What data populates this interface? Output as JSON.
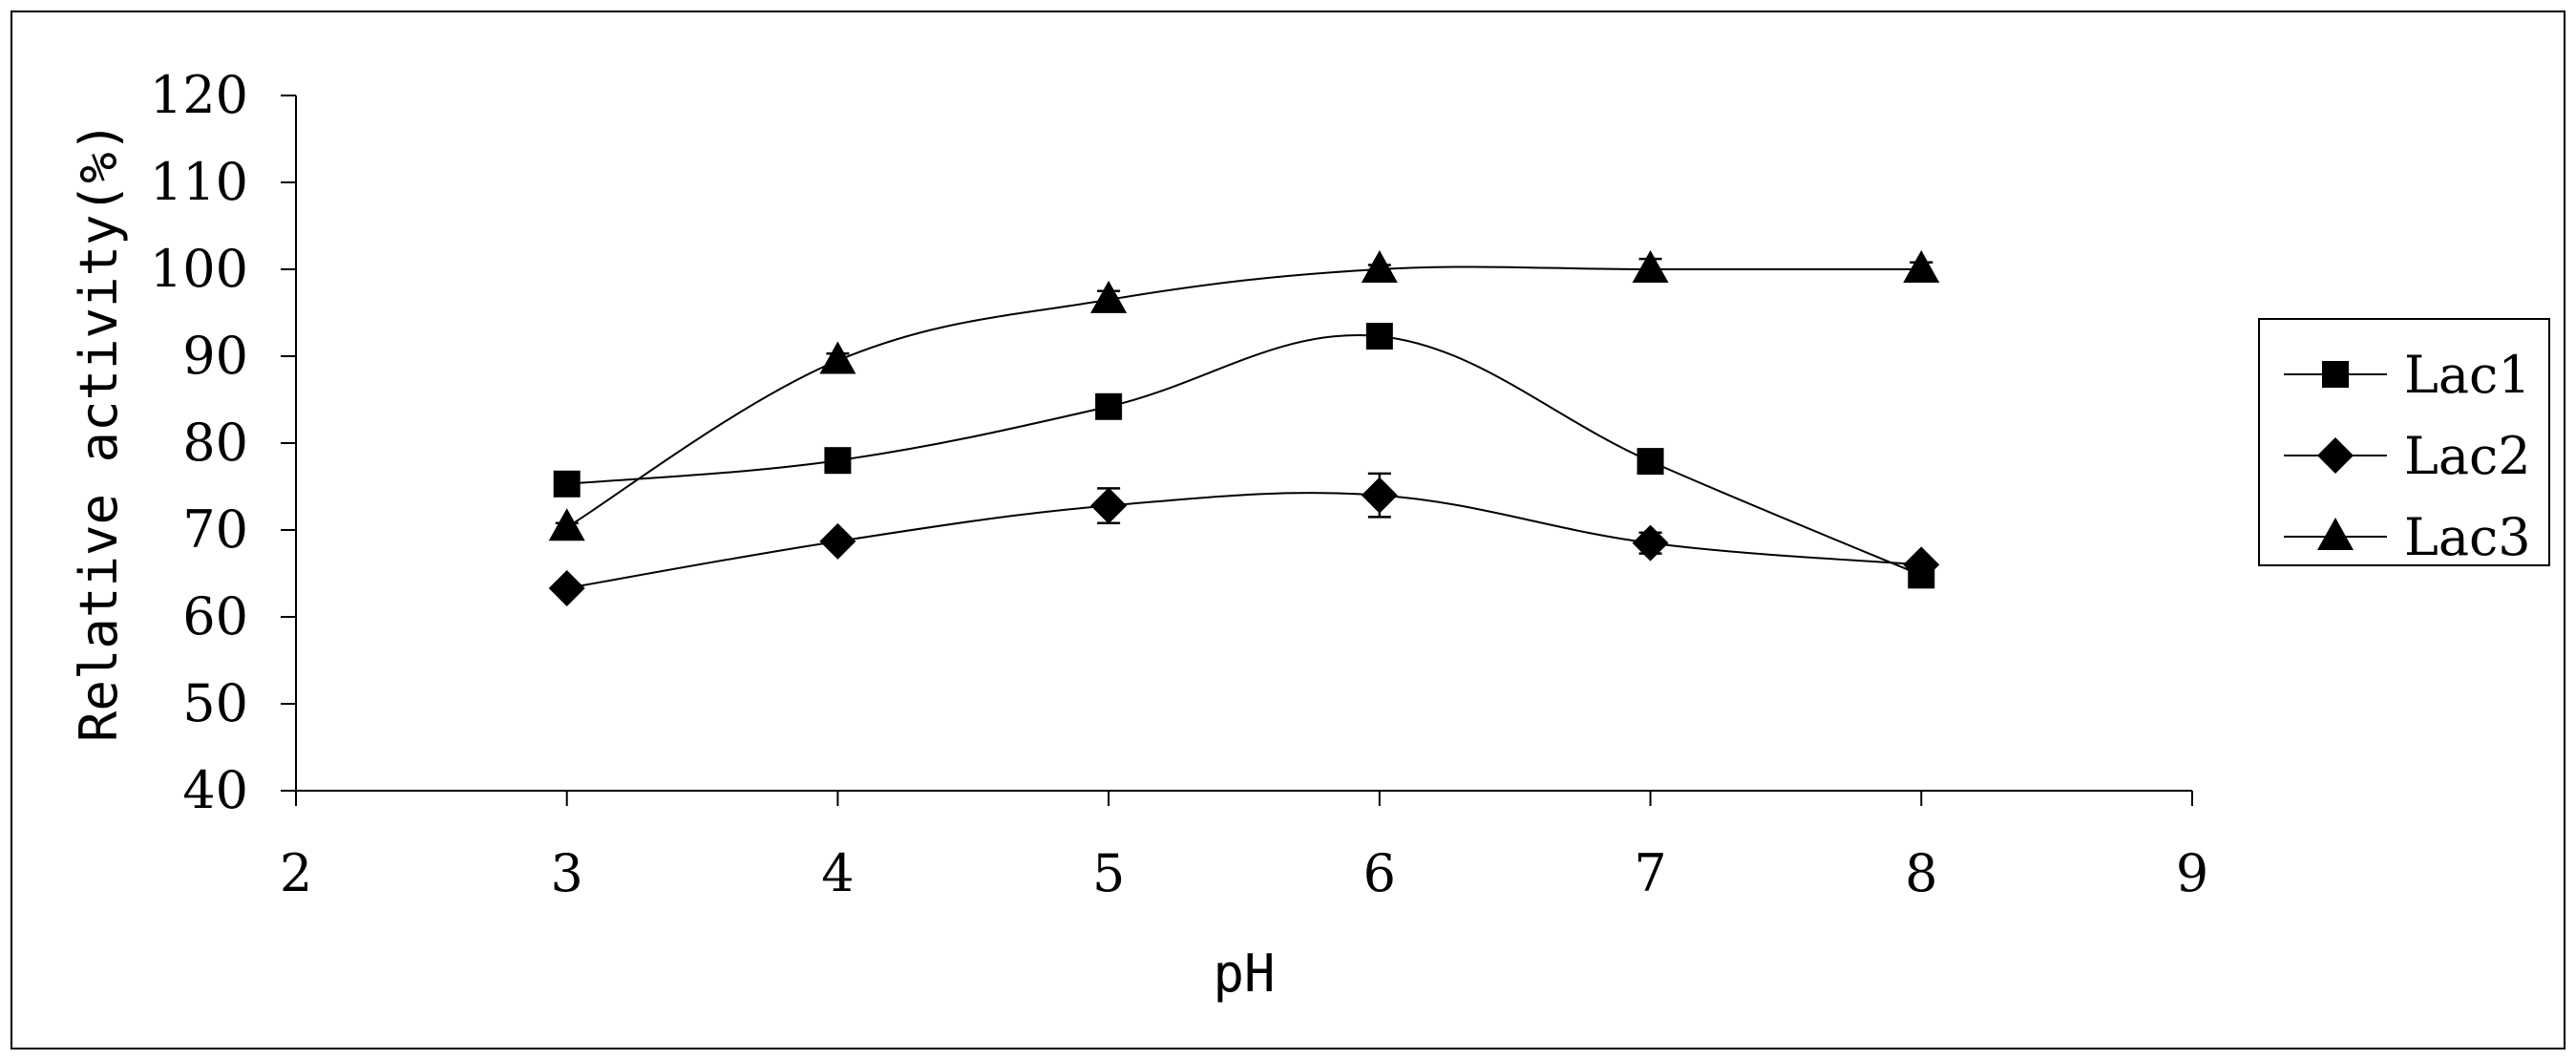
{
  "chart_data": {
    "type": "line",
    "title": "",
    "xlabel": "pH",
    "ylabel": "Relative activity(%)",
    "xlim": [
      2,
      9
    ],
    "ylim": [
      40,
      120
    ],
    "x_ticks": [
      2,
      3,
      4,
      5,
      6,
      7,
      8,
      9
    ],
    "y_ticks": [
      40,
      50,
      60,
      70,
      80,
      90,
      100,
      110,
      120
    ],
    "grid": false,
    "legend_position": "right",
    "x": [
      3,
      4,
      5,
      6,
      7,
      8
    ],
    "series": [
      {
        "name": "Lac1",
        "marker": "square",
        "values": [
          75.3,
          78.0,
          84.2,
          92.3,
          77.9,
          64.8
        ],
        "errors": [
          0.8,
          0.8,
          0.8,
          0.8,
          1.2,
          0.8
        ]
      },
      {
        "name": "Lac2",
        "marker": "diamond",
        "values": [
          63.3,
          68.7,
          72.8,
          74.0,
          68.5,
          66.0
        ],
        "errors": [
          0.5,
          0.5,
          2.0,
          2.5,
          1.2,
          0.5
        ]
      },
      {
        "name": "Lac3",
        "marker": "triangle",
        "values": [
          70.3,
          89.5,
          96.5,
          100.0,
          100.0,
          100.0
        ],
        "errors": [
          0.5,
          0.8,
          1.0,
          0.5,
          1.2,
          0.8
        ]
      }
    ]
  }
}
